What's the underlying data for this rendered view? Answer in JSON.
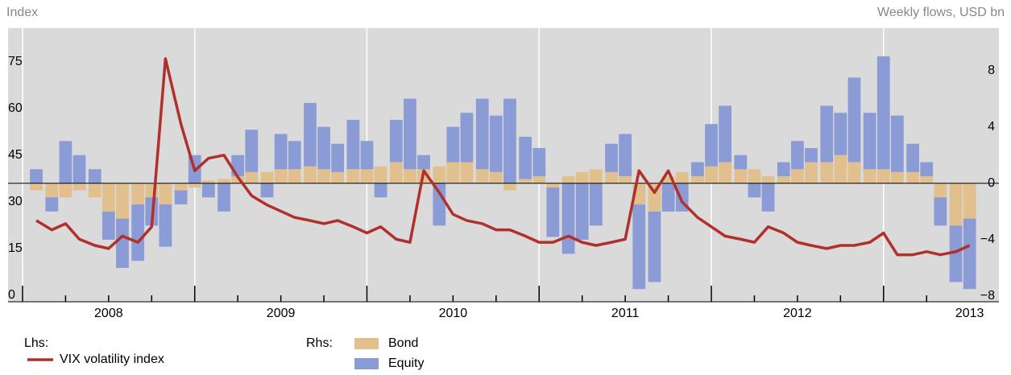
{
  "chart_data": {
    "type": "combo",
    "left_axis_label": "Index",
    "right_axis_label": "Weekly flows, USD bn",
    "lhs_label": "Lhs:",
    "rhs_label": "Rhs:",
    "x": [
      2008.08,
      2008.17,
      2008.25,
      2008.33,
      2008.42,
      2008.5,
      2008.58,
      2008.67,
      2008.75,
      2008.83,
      2008.92,
      2009.0,
      2009.08,
      2009.17,
      2009.25,
      2009.33,
      2009.42,
      2009.5,
      2009.58,
      2009.67,
      2009.75,
      2009.83,
      2009.92,
      2010.0,
      2010.08,
      2010.17,
      2010.25,
      2010.33,
      2010.42,
      2010.5,
      2010.58,
      2010.67,
      2010.75,
      2010.83,
      2010.92,
      2011.0,
      2011.08,
      2011.17,
      2011.25,
      2011.33,
      2011.42,
      2011.5,
      2011.58,
      2011.67,
      2011.75,
      2011.83,
      2011.92,
      2012.0,
      2012.08,
      2012.17,
      2012.25,
      2012.33,
      2012.42,
      2012.5,
      2012.58,
      2012.67,
      2012.75,
      2012.83,
      2012.92,
      2013.0,
      2013.08,
      2013.17,
      2013.25,
      2013.33,
      2013.42,
      2013.5
    ],
    "series": [
      {
        "name": "Bond",
        "type": "bar",
        "axis": "y2",
        "color": "#e2c08e",
        "values": [
          -0.5,
          -1,
          -1,
          -0.5,
          -1,
          -2,
          -2.5,
          -1.5,
          -1,
          -1.5,
          -0.5,
          -0.3,
          0.2,
          0.3,
          0.5,
          0.8,
          0.8,
          1,
          1,
          1.2,
          1,
          0.8,
          1,
          1,
          1.2,
          1.5,
          1,
          1,
          1.2,
          1.5,
          1.5,
          1,
          0.8,
          -0.5,
          0.3,
          0.5,
          -0.3,
          0.5,
          0.8,
          1,
          0.8,
          0.5,
          -1.5,
          -2,
          0.5,
          0.8,
          0.5,
          1.2,
          1.5,
          1,
          1,
          0.5,
          0.5,
          1,
          1.5,
          1.5,
          2,
          1.5,
          1,
          1,
          0.8,
          0.8,
          0.5,
          -1,
          -3,
          -2.5
        ]
      },
      {
        "name": "Equity",
        "type": "bar",
        "axis": "y2",
        "color": "#8b9bd6",
        "values": [
          1,
          -1,
          3,
          2,
          1,
          -2,
          -3.5,
          -4,
          -2,
          -3,
          -1,
          2,
          -1,
          -2,
          1.5,
          3,
          -1,
          2.5,
          2,
          4.5,
          3,
          2,
          3.5,
          2,
          -1,
          3,
          5,
          1,
          -3,
          2.5,
          3.5,
          5,
          4,
          6,
          3,
          2,
          -3.5,
          -5,
          -4,
          -3,
          2,
          3,
          -6,
          -5,
          -2,
          -2,
          1,
          3,
          4,
          1,
          -1,
          -2,
          1,
          2,
          1,
          4,
          3,
          6,
          4,
          8,
          4,
          2,
          1,
          -2,
          -4,
          -5
        ]
      },
      {
        "name": "VIX volatility index",
        "type": "line",
        "axis": "y",
        "color": "#b0302c",
        "values": [
          24,
          21,
          23,
          18,
          16,
          15,
          19,
          17,
          22,
          76,
          55,
          40,
          44,
          45,
          38,
          32,
          29,
          27,
          25,
          24,
          23,
          24,
          22,
          20,
          22,
          18,
          17,
          40,
          33,
          26,
          24,
          23,
          21,
          21,
          19,
          17,
          17,
          19,
          17,
          16,
          17,
          18,
          40,
          33,
          40,
          30,
          25,
          22,
          19,
          18,
          17,
          22,
          20,
          17,
          16,
          15,
          16,
          16,
          17,
          20,
          13,
          13,
          14,
          13,
          14,
          16
        ]
      }
    ],
    "xlim": [
      2007.916,
      2013.67
    ],
    "xticks": [
      {
        "value": 2008.5,
        "label": "2008"
      },
      {
        "value": 2009.5,
        "label": "2009"
      },
      {
        "value": 2010.5,
        "label": "2010"
      },
      {
        "value": 2011.5,
        "label": "2011"
      },
      {
        "value": 2012.5,
        "label": "2012"
      },
      {
        "value": 2013.5,
        "label": "2013"
      }
    ],
    "xgrid_ticks": [
      2008,
      2009,
      2010,
      2011,
      2012,
      2013
    ],
    "xminor_ticks": [
      2008.25,
      2008.5,
      2008.75,
      2009.25,
      2009.5,
      2009.75,
      2010.25,
      2010.5,
      2010.75,
      2011.25,
      2011.5,
      2011.75,
      2012.25,
      2012.5,
      2012.75,
      2013.25
    ],
    "ylim": [
      -2.1,
      85.8
    ],
    "yticks": [
      0,
      15,
      30,
      45,
      60,
      75
    ],
    "y2lim": [
      -8.4,
      11
    ],
    "y2ticks": [
      8,
      4,
      0,
      {
        "value": -4,
        "label": "−4"
      },
      {
        "value": -8,
        "label": "−8"
      }
    ],
    "zero_line": true,
    "background": "#dadada"
  }
}
